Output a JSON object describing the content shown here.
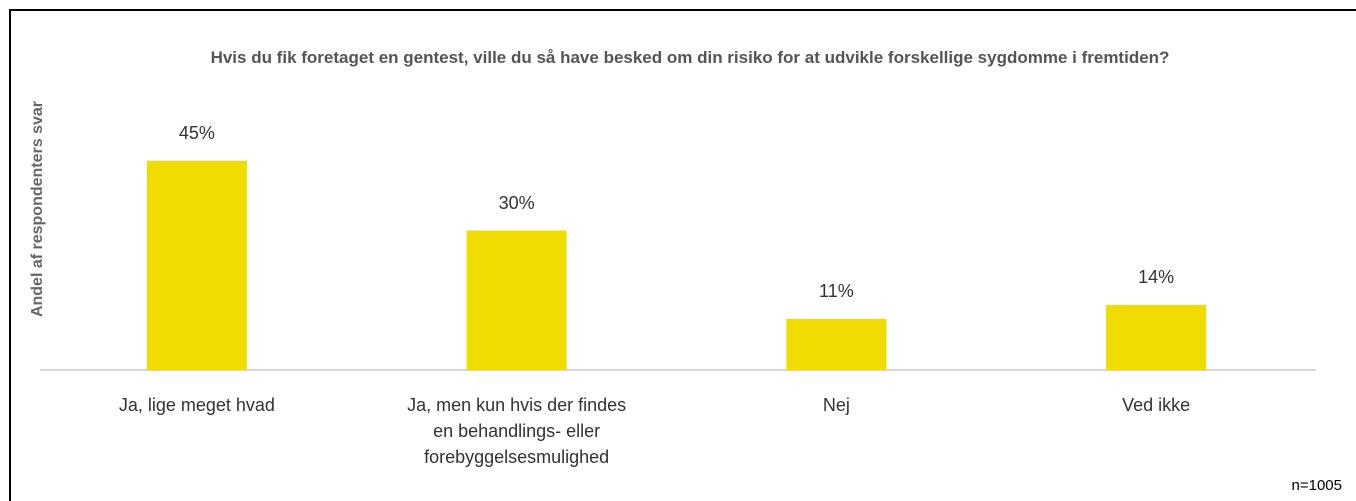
{
  "chart_data": {
    "type": "bar",
    "title": "Hvis du fik foretaget en gentest, ville du så have besked om din risiko for at udvikle forskellige sygdomme i fremtiden?",
    "y_label": "Andel af respondenters svar",
    "categories": [
      "Ja, lige meget hvad",
      "Ja, men kun hvis der findes en behandlings- eller forebyggelsesmulighed",
      "Nej",
      "Ved ikke"
    ],
    "values": [
      45,
      30,
      11,
      14
    ],
    "value_labels": [
      "45%",
      "30%",
      "11%",
      "14%"
    ],
    "color": "#f0dc00",
    "annotation": "n=1005"
  }
}
